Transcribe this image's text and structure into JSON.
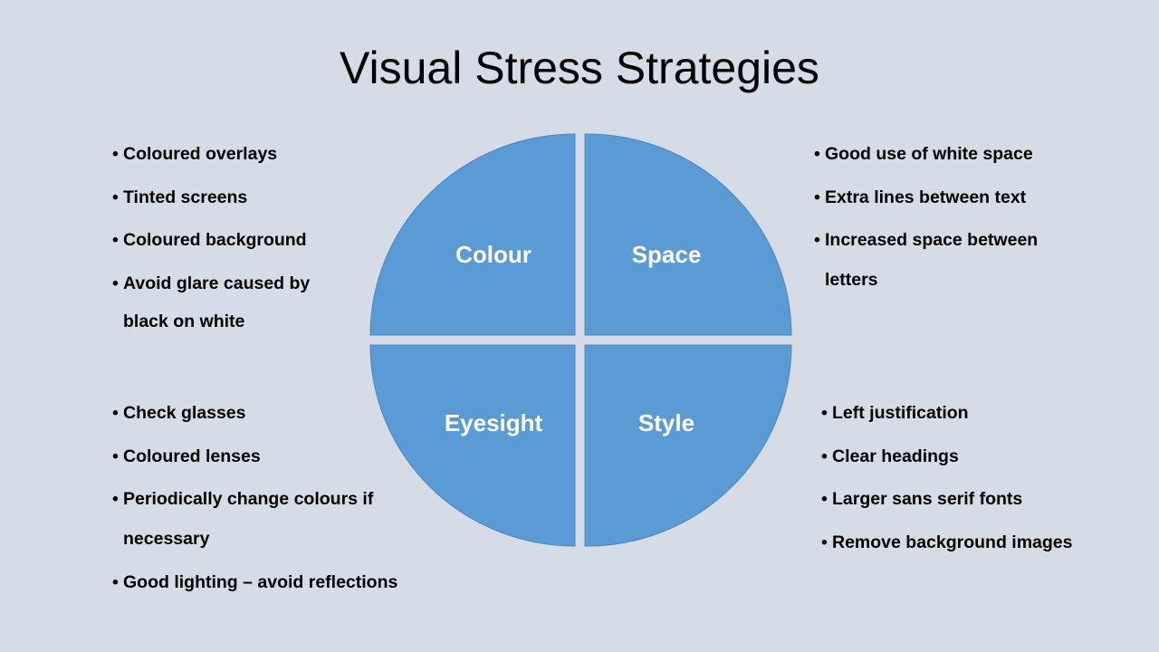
{
  "slide": {
    "title": "Visual Stress Strategies",
    "background_color": "#d6dce5"
  },
  "diagram": {
    "fill_color": "#5b9bd5",
    "outline_color": "#4a86c0",
    "label_color": "#ffffff",
    "quadrants": [
      {
        "id": "colour",
        "label": "Colour"
      },
      {
        "id": "space",
        "label": "Space"
      },
      {
        "id": "eyesight",
        "label": "Eyesight"
      },
      {
        "id": "style",
        "label": "Style"
      }
    ]
  },
  "lists": {
    "colour": [
      "Coloured overlays",
      "Tinted screens",
      "Coloured background",
      "Avoid glare caused by black on white"
    ],
    "space": [
      "Good use of white space",
      "Extra lines between text",
      "Increased space between letters"
    ],
    "eyesight": [
      "Check glasses",
      "Coloured lenses",
      "Periodically change colours if necessary",
      "Good lighting – avoid reflections"
    ],
    "style": [
      "Left justification",
      "Clear headings",
      "Larger sans serif fonts",
      "Remove background images"
    ]
  }
}
